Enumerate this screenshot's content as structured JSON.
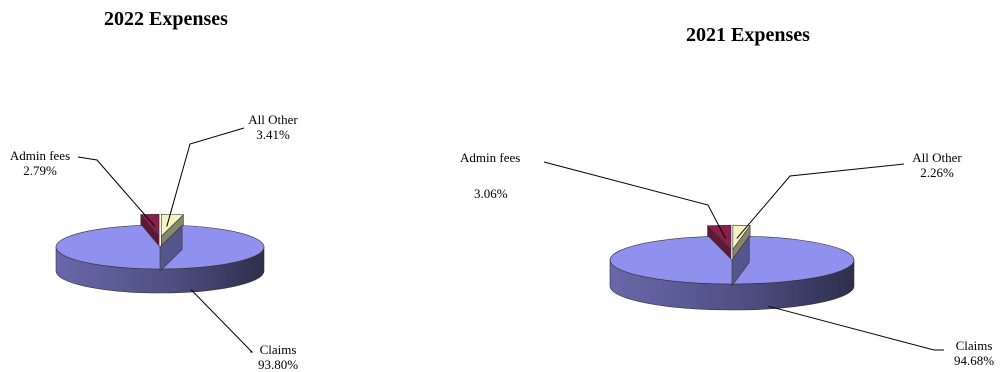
{
  "chart_data": [
    {
      "type": "pie",
      "title": "2022 Expenses",
      "categories": [
        "Claims",
        "Admin fees",
        "All Other"
      ],
      "values": [
        93.8,
        2.79,
        3.41
      ],
      "value_labels": [
        "93.80%",
        "2.79%",
        "3.41%"
      ],
      "exploded": [
        "Admin fees",
        "All Other"
      ],
      "three_d": true,
      "legend": "none",
      "colors": {
        "Claims": "#9090ee",
        "Admin fees": "#8a1f4c",
        "All Other": "#f6f3c2"
      }
    },
    {
      "type": "pie",
      "title": "2021 Expenses",
      "categories": [
        "Claims",
        "Admin fees",
        "All Other"
      ],
      "values": [
        94.68,
        3.06,
        2.26
      ],
      "value_labels": [
        "94.68%",
        "3.06%",
        "2.26%"
      ],
      "exploded": [
        "Admin fees",
        "All Other"
      ],
      "three_d": true,
      "legend": "none",
      "colors": {
        "Claims": "#9090ee",
        "Admin fees": "#8a1f4c",
        "All Other": "#f6f3c2"
      }
    }
  ]
}
